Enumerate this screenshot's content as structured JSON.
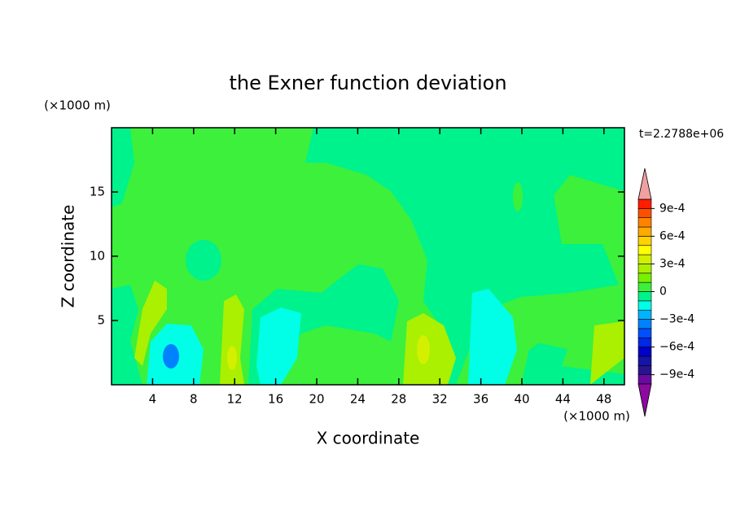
{
  "chart_data": {
    "type": "contour",
    "title": "the Exner function deviation",
    "xlabel": "X coordinate",
    "ylabel": "Z coordinate",
    "x_unit": "(×1000 m)",
    "y_unit": "(×1000 m)",
    "annotation": "t=2.2788e+06",
    "xlim": [
      0,
      50
    ],
    "ylim": [
      0,
      20
    ],
    "xticks": [
      4,
      8,
      12,
      16,
      20,
      24,
      28,
      32,
      36,
      40,
      44,
      48
    ],
    "yticks": [
      5,
      10,
      15
    ],
    "levels": [
      -0.001,
      -0.0009,
      -0.0008,
      -0.0007,
      -0.0006,
      -0.0005,
      -0.0004,
      -0.0003,
      -0.0002,
      -0.0001,
      0,
      0.0001,
      0.0002,
      0.0003,
      0.0004,
      0.0005,
      0.0006,
      0.0007,
      0.0008,
      0.0009,
      0.001
    ],
    "colors": [
      "#6a0aa0",
      "#28148c",
      "#1414aa",
      "#0000c8",
      "#0028e6",
      "#0050ff",
      "#0082ff",
      "#00b4ff",
      "#00ffe6",
      "#00f28c",
      "#3cf03c",
      "#78f000",
      "#aaf000",
      "#d2f000",
      "#ffff00",
      "#ffd200",
      "#ffaa00",
      "#ff8200",
      "#ff5000",
      "#ff1e00"
    ],
    "under_color": "#8c0aa0",
    "over_color": "#f0a0a0",
    "colorbar_ticks": [
      {
        "value": 0.0009,
        "label": "9e-4"
      },
      {
        "value": 0.0006,
        "label": "6e-4"
      },
      {
        "value": 0.0003,
        "label": "3e-4"
      },
      0,
      {
        "value": -0.0003,
        "label": "−3e-4"
      },
      {
        "value": -0.0006,
        "label": "−6e-4"
      },
      {
        "value": -0.0009,
        "label": "−9e-4"
      }
    ]
  }
}
